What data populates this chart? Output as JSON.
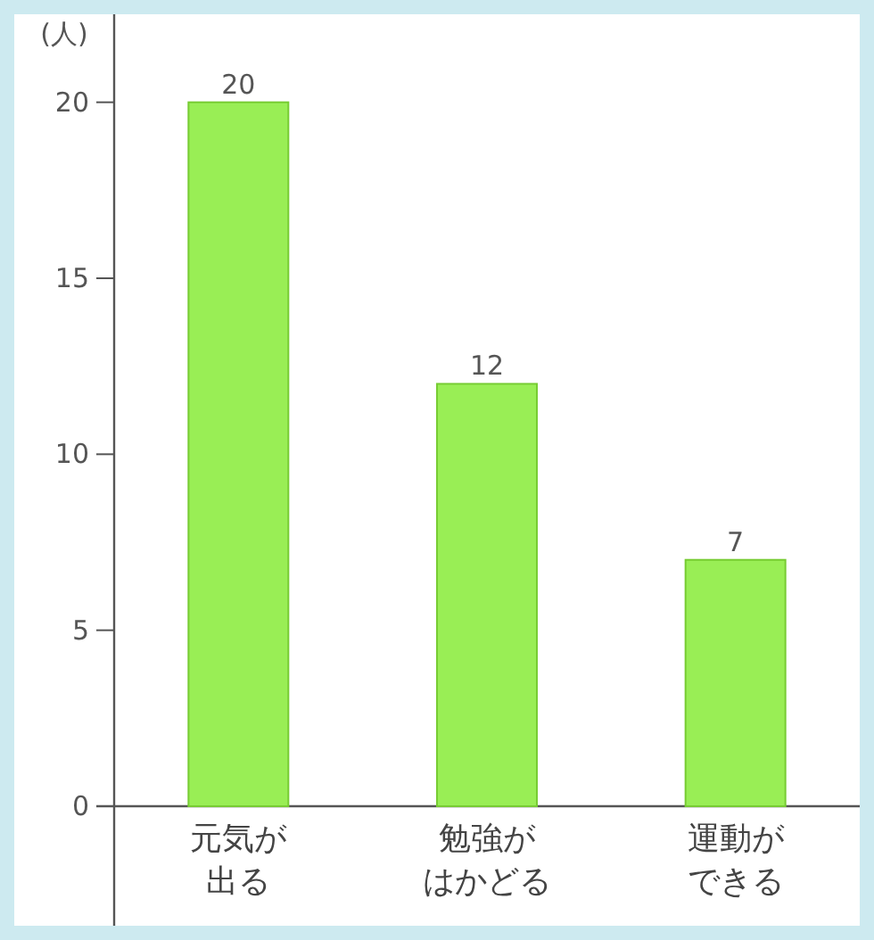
{
  "chart_data": {
    "type": "bar",
    "ylabel": "(人)",
    "categories": [
      "元気が出る",
      "勉強がはかどる",
      "運動ができる"
    ],
    "values": [
      20,
      12,
      7
    ],
    "color": "#99ee55",
    "ylim": [
      0,
      22.5
    ],
    "yticks": [
      0,
      5,
      10,
      15,
      20
    ],
    "data_labels": true,
    "grid": false
  }
}
